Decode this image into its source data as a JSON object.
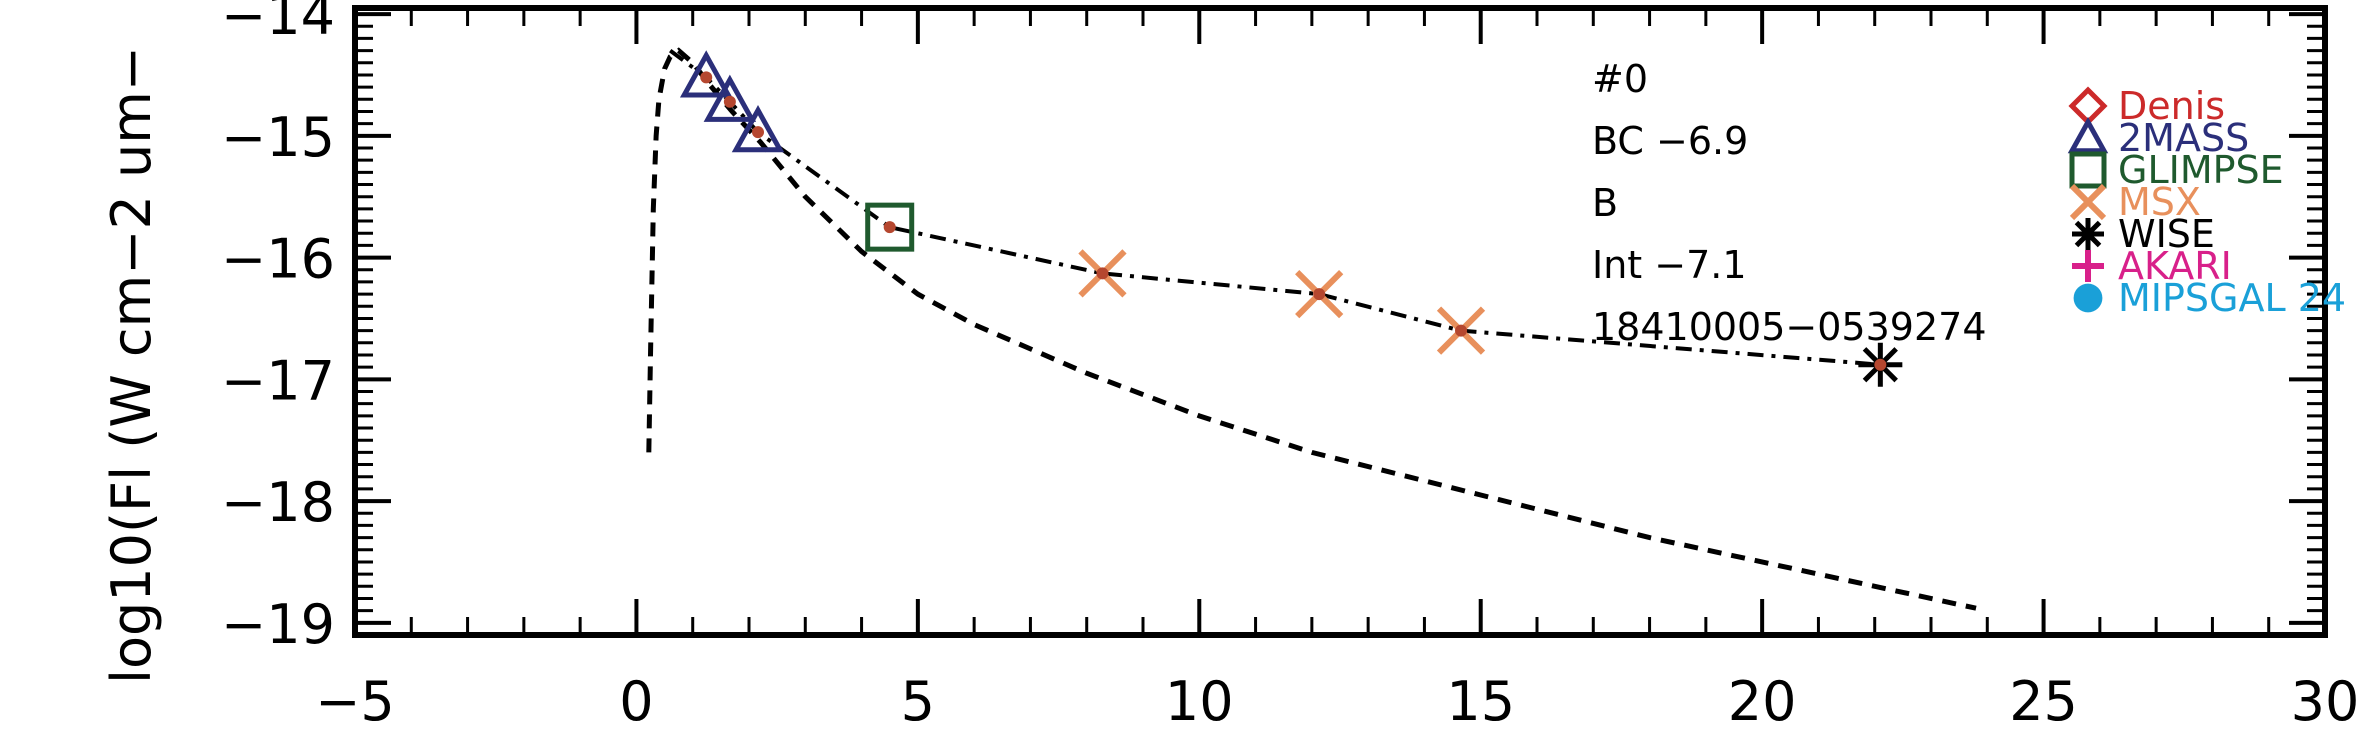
{
  "chart_data": {
    "type": "scatter",
    "title": "",
    "xlabel": "",
    "ylabel": "log10(Fl (W cm−2 um−",
    "xlim": [
      -5,
      30
    ],
    "ylim": [
      -19.1,
      -13.95
    ],
    "x_ticks": [
      -5,
      0,
      5,
      10,
      15,
      20,
      25,
      30
    ],
    "x_tick_labels": [
      "−5",
      "0",
      "5",
      "10",
      "15",
      "20",
      "25",
      "30"
    ],
    "y_ticks": [
      -19,
      -18,
      -17,
      -16,
      -15,
      -14
    ],
    "y_tick_labels": [
      "−19",
      "−18",
      "−17",
      "−16",
      "−15",
      "−14"
    ],
    "grid": false,
    "legend_placement": "top-right",
    "annotations": [
      "#0",
      "BC −6.9",
      "B",
      "Int −7.1",
      "18410005−0539274"
    ],
    "series": [
      {
        "name": "2MASS",
        "marker": "triangle",
        "color": "#2b2f7a",
        "x": [
          1.24,
          1.66,
          2.16
        ],
        "y": [
          -14.52,
          -14.72,
          -14.97
        ]
      },
      {
        "name": "GLIMPSE",
        "marker": "square",
        "color": "#1f5a2e",
        "x": [
          4.5
        ],
        "y": [
          -15.75
        ]
      },
      {
        "name": "MSX",
        "marker": "x",
        "color": "#e8905c",
        "x": [
          8.28,
          12.13,
          14.65
        ],
        "y": [
          -16.13,
          -16.3,
          -16.6
        ]
      },
      {
        "name": "WISE",
        "marker": "asterisk",
        "color": "#000000",
        "x": [
          22.1
        ],
        "y": [
          -16.88
        ]
      }
    ],
    "fit_curve": {
      "x": [
        0.6,
        1.24,
        1.66,
        2.16,
        4.5,
        8.28,
        12.13,
        14.65,
        22.1
      ],
      "y": [
        -14.3,
        -14.52,
        -14.72,
        -14.97,
        -15.75,
        -16.13,
        -16.3,
        -16.6,
        -16.88
      ]
    },
    "blackbody_curve": {
      "x": [
        0.22,
        0.25,
        0.3,
        0.35,
        0.4,
        0.5,
        0.6,
        0.75,
        1.0,
        1.3,
        1.7,
        2.2,
        3,
        4,
        5,
        6,
        8,
        10,
        12,
        15,
        18,
        21,
        23.8
      ],
      "y": [
        -17.6,
        -16.8,
        -15.6,
        -15.0,
        -14.7,
        -14.45,
        -14.35,
        -14.3,
        -14.4,
        -14.58,
        -14.8,
        -15.05,
        -15.5,
        -15.95,
        -16.3,
        -16.55,
        -16.95,
        -17.3,
        -17.6,
        -17.95,
        -18.3,
        -18.6,
        -18.88
      ]
    },
    "legend": [
      {
        "label": "Denis",
        "marker": "diamond",
        "color": "#cc2a2a"
      },
      {
        "label": "2MASS",
        "marker": "triangle",
        "color": "#2b2f7a"
      },
      {
        "label": "GLIMPSE",
        "marker": "square",
        "color": "#1f5a2e"
      },
      {
        "label": "MSX",
        "marker": "x",
        "color": "#e8905c"
      },
      {
        "label": "WISE",
        "marker": "asterisk",
        "color": "#000000"
      },
      {
        "label": "AKARI",
        "marker": "plus",
        "color": "#d8208a"
      },
      {
        "label": "MIPSGAL 24",
        "marker": "circle",
        "color": "#1aa0d8"
      }
    ]
  }
}
